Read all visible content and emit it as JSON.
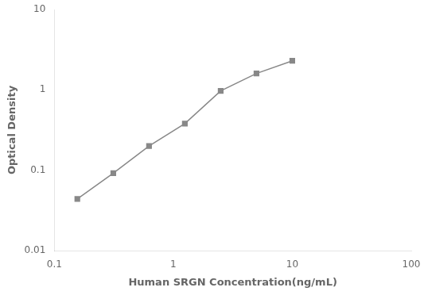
{
  "chart_data": {
    "type": "line",
    "x": [
      0.156,
      0.313,
      0.625,
      1.25,
      2.5,
      5.0,
      10.0
    ],
    "values": [
      0.044,
      0.092,
      0.2,
      0.38,
      0.97,
      1.6,
      2.3
    ],
    "xlabel": "Human SRGN Concentration(ng/mL)",
    "ylabel": "Optical Density",
    "xlim": [
      0.1,
      100
    ],
    "ylim": [
      0.01,
      10
    ],
    "xticks": [
      0.1,
      1,
      10,
      100
    ],
    "yticks": [
      0.01,
      0.1,
      1,
      10
    ],
    "log": true,
    "grid": false,
    "color": "#888888",
    "marker": "square"
  }
}
